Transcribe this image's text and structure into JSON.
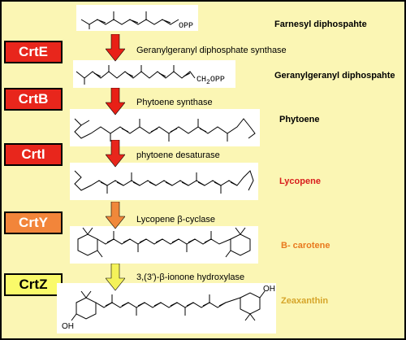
{
  "genes": [
    {
      "name": "CrtE",
      "color": "#e8261c",
      "text_color": "#ffffff"
    },
    {
      "name": "CrtB",
      "color": "#e8261c",
      "text_color": "#ffffff"
    },
    {
      "name": "CrtI",
      "color": "#e8261c",
      "text_color": "#ffffff"
    },
    {
      "name": "CrtY",
      "color": "#f2853a",
      "text_color": "#ffffff"
    },
    {
      "name": "CrtZ",
      "color": "#fafa6a",
      "text_color": "#000000"
    }
  ],
  "enzymes": [
    "Geranylgeranyl diphosphate synthase",
    "Phytoene synthase",
    "phytoene desaturase",
    "Lycopene β-cyclase",
    "3,(3')-β-ionone hydroxylase"
  ],
  "products": [
    {
      "name": "Farnesyl diphospahte",
      "color": "#000000"
    },
    {
      "name": "Geranylgeranyl diphospahte",
      "color": "#000000"
    },
    {
      "name": "Phytoene",
      "color": "#000000"
    },
    {
      "name": "Lycopene",
      "color": "#d81c1c"
    },
    {
      "name": "B- carotene",
      "color": "#e8791e"
    },
    {
      "name": "Zeaxanthin",
      "color": "#d6a52a"
    }
  ],
  "arrows": [
    {
      "color": "#e82016"
    },
    {
      "color": "#e82016"
    },
    {
      "color": "#e8261c"
    },
    {
      "color": "#f0883a"
    },
    {
      "color": "#f4f25a"
    }
  ],
  "chem_labels": {
    "opp1": "OPP",
    "opp2": "CH2OPP",
    "oh_left": "OH",
    "oh_right": "OH"
  }
}
